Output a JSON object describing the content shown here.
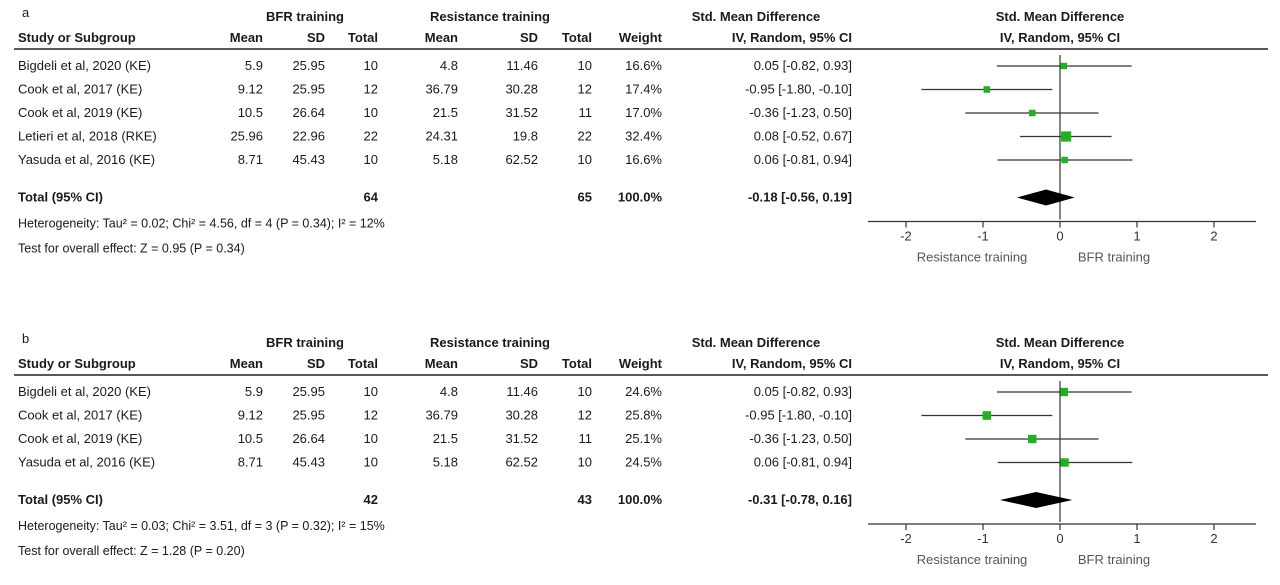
{
  "chart_data": [
    {
      "type": "forest",
      "panel_label": "a",
      "group_headers": {
        "experimental": "BFR training",
        "control": "Resistance training",
        "effect": "Std. Mean Difference",
        "plot": "Std. Mean Difference"
      },
      "columns": {
        "study": "Study or Subgroup",
        "mean_e": "Mean",
        "sd_e": "SD",
        "total_e": "Total",
        "mean_c": "Mean",
        "sd_c": "SD",
        "total_c": "Total",
        "weight": "Weight",
        "effect": "IV, Random, 95% CI",
        "plot": "IV, Random, 95% CI"
      },
      "studies": [
        {
          "name": "Bigdeli et al, 2020 (KE)",
          "mean_e": "5.9",
          "sd_e": "25.95",
          "total_e": "10",
          "mean_c": "4.8",
          "sd_c": "11.46",
          "total_c": "10",
          "weight": "16.6%",
          "ci_text": "0.05 [-0.82, 0.93]",
          "est": 0.05,
          "lo": -0.82,
          "hi": 0.93
        },
        {
          "name": "Cook et al, 2017 (KE)",
          "mean_e": "9.12",
          "sd_e": "25.95",
          "total_e": "12",
          "mean_c": "36.79",
          "sd_c": "30.28",
          "total_c": "12",
          "weight": "17.4%",
          "ci_text": "-0.95 [-1.80, -0.10]",
          "est": -0.95,
          "lo": -1.8,
          "hi": -0.1
        },
        {
          "name": "Cook et al, 2019 (KE)",
          "mean_e": "10.5",
          "sd_e": "26.64",
          "total_e": "10",
          "mean_c": "21.5",
          "sd_c": "31.52",
          "total_c": "11",
          "weight": "17.0%",
          "ci_text": "-0.36 [-1.23, 0.50]",
          "est": -0.36,
          "lo": -1.23,
          "hi": 0.5
        },
        {
          "name": "Letieri et al, 2018 (RKE)",
          "mean_e": "25.96",
          "sd_e": "22.96",
          "total_e": "22",
          "mean_c": "24.31",
          "sd_c": "19.8",
          "total_c": "22",
          "weight": "32.4%",
          "ci_text": "0.08 [-0.52, 0.67]",
          "est": 0.08,
          "lo": -0.52,
          "hi": 0.67
        },
        {
          "name": "Yasuda et al, 2016 (KE)",
          "mean_e": "8.71",
          "sd_e": "45.43",
          "total_e": "10",
          "mean_c": "5.18",
          "sd_c": "62.52",
          "total_c": "10",
          "weight": "16.6%",
          "ci_text": "0.06 [-0.81, 0.94]",
          "est": 0.06,
          "lo": -0.81,
          "hi": 0.94
        }
      ],
      "total": {
        "label": "Total (95% CI)",
        "total_e": "64",
        "total_c": "65",
        "weight": "100.0%",
        "ci_text": "-0.18 [-0.56, 0.19]",
        "est": -0.18,
        "lo": -0.56,
        "hi": 0.19
      },
      "heterogeneity": "Heterogeneity: Tau² = 0.02; Chi² = 4.56, df = 4 (P = 0.34); I² = 12%",
      "overall_effect": "Test for overall effect: Z = 0.95 (P = 0.34)",
      "x_ticks": [
        -2,
        -1,
        0,
        1,
        2
      ],
      "xlim": [
        -2.5,
        2.5
      ],
      "favours_left": "Resistance training",
      "favours_right": "BFR training",
      "marker_color": "#22b022"
    },
    {
      "type": "forest",
      "panel_label": "b",
      "group_headers": {
        "experimental": "BFR training",
        "control": "Resistance training",
        "effect": "Std. Mean Difference",
        "plot": "Std. Mean Difference"
      },
      "columns": {
        "study": "Study or Subgroup",
        "mean_e": "Mean",
        "sd_e": "SD",
        "total_e": "Total",
        "mean_c": "Mean",
        "sd_c": "SD",
        "total_c": "Total",
        "weight": "Weight",
        "effect": "IV, Random, 95% CI",
        "plot": "IV, Random, 95% CI"
      },
      "studies": [
        {
          "name": "Bigdeli et al, 2020 (KE)",
          "mean_e": "5.9",
          "sd_e": "25.95",
          "total_e": "10",
          "mean_c": "4.8",
          "sd_c": "11.46",
          "total_c": "10",
          "weight": "24.6%",
          "ci_text": "0.05 [-0.82, 0.93]",
          "est": 0.05,
          "lo": -0.82,
          "hi": 0.93
        },
        {
          "name": "Cook et al, 2017 (KE)",
          "mean_e": "9.12",
          "sd_e": "25.95",
          "total_e": "12",
          "mean_c": "36.79",
          "sd_c": "30.28",
          "total_c": "12",
          "weight": "25.8%",
          "ci_text": "-0.95 [-1.80, -0.10]",
          "est": -0.95,
          "lo": -1.8,
          "hi": -0.1
        },
        {
          "name": "Cook et al, 2019 (KE)",
          "mean_e": "10.5",
          "sd_e": "26.64",
          "total_e": "10",
          "mean_c": "21.5",
          "sd_c": "31.52",
          "total_c": "11",
          "weight": "25.1%",
          "ci_text": "-0.36 [-1.23, 0.50]",
          "est": -0.36,
          "lo": -1.23,
          "hi": 0.5
        },
        {
          "name": "Yasuda et al, 2016 (KE)",
          "mean_e": "8.71",
          "sd_e": "45.43",
          "total_e": "10",
          "mean_c": "5.18",
          "sd_c": "62.52",
          "total_c": "10",
          "weight": "24.5%",
          "ci_text": "0.06 [-0.81, 0.94]",
          "est": 0.06,
          "lo": -0.81,
          "hi": 0.94
        }
      ],
      "total": {
        "label": "Total (95% CI)",
        "total_e": "42",
        "total_c": "43",
        "weight": "100.0%",
        "ci_text": "-0.31 [-0.78, 0.16]",
        "est": -0.31,
        "lo": -0.78,
        "hi": 0.16
      },
      "heterogeneity": "Heterogeneity: Tau² = 0.03; Chi² = 3.51, df = 3 (P = 0.32); I² = 15%",
      "overall_effect": "Test for overall effect: Z = 1.28 (P = 0.20)",
      "x_ticks": [
        -2,
        -1,
        0,
        1,
        2
      ],
      "xlim": [
        -2.5,
        2.5
      ],
      "favours_left": "Resistance training",
      "favours_right": "BFR training",
      "marker_color": "#22b022"
    }
  ]
}
